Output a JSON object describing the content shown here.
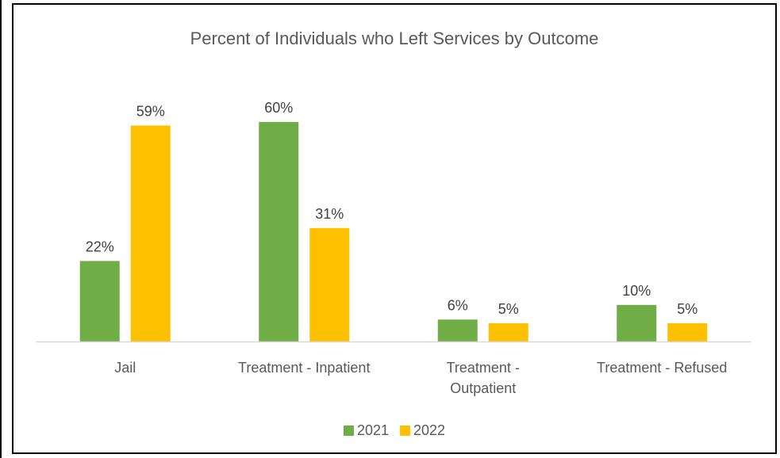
{
  "chart_data": {
    "type": "bar",
    "title": "Percent of Individuals who Left Services by Outcome",
    "categories": [
      [
        "Jail"
      ],
      [
        "Treatment - Inpatient"
      ],
      [
        "Treatment -",
        "Outpatient"
      ],
      [
        "Treatment - Refused"
      ]
    ],
    "series": [
      {
        "name": "2021",
        "color": "#70AD47",
        "values": [
          22,
          60,
          6,
          10
        ],
        "labels": [
          "22%",
          "60%",
          "6%",
          "10%"
        ]
      },
      {
        "name": "2022",
        "color": "#FFC000",
        "values": [
          59,
          31,
          5,
          5
        ],
        "labels": [
          "59%",
          "31%",
          "5%",
          "5%"
        ]
      }
    ],
    "ylim": [
      0,
      63
    ],
    "grid": false,
    "legend_position": "bottom",
    "data_labels": true
  }
}
